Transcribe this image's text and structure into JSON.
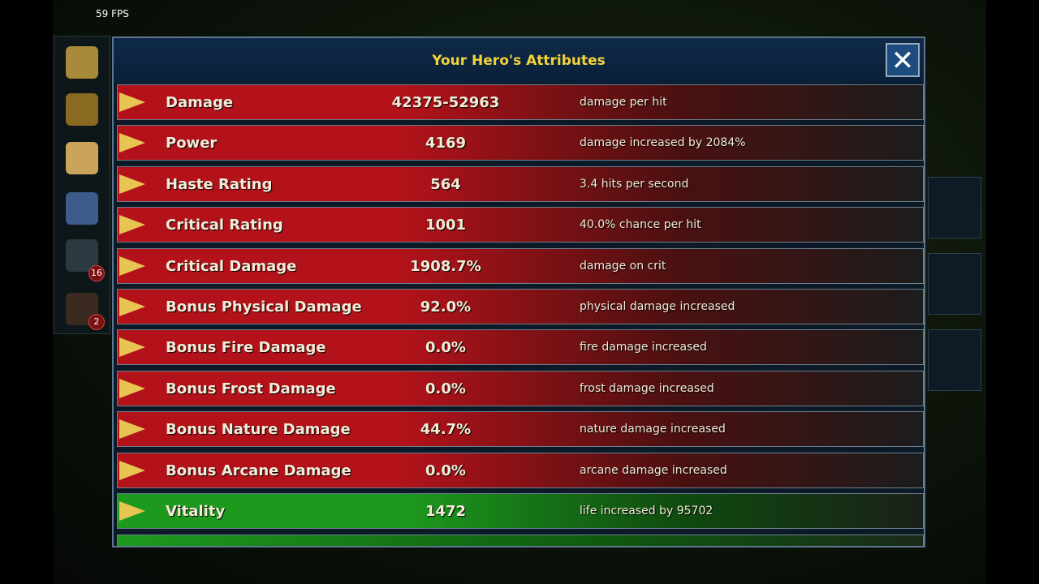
{
  "hud": {
    "fps": "59 FPS"
  },
  "sidebar": {
    "mail_badge": "16",
    "guild_badge": "2"
  },
  "panel": {
    "title": "Your Hero's Attributes",
    "rows": [
      {
        "name": "Damage",
        "value": "42375-52963",
        "description": "damage per hit",
        "color": "#b3121a"
      },
      {
        "name": "Power",
        "value": "4169",
        "description": "damage increased by 2084%",
        "color": "#b3121a"
      },
      {
        "name": "Haste Rating",
        "value": "564",
        "description": "3.4 hits per second",
        "color": "#b3121a"
      },
      {
        "name": "Critical Rating",
        "value": "1001",
        "description": "40.0% chance per hit",
        "color": "#b3121a"
      },
      {
        "name": "Critical Damage",
        "value": "1908.7%",
        "description": "damage on crit",
        "color": "#b3121a"
      },
      {
        "name": "Bonus Physical Damage",
        "value": "92.0%",
        "description": "physical damage increased",
        "color": "#b3121a"
      },
      {
        "name": "Bonus Fire Damage",
        "value": "0.0%",
        "description": "fire damage increased",
        "color": "#b3121a"
      },
      {
        "name": "Bonus Frost Damage",
        "value": "0.0%",
        "description": "frost damage increased",
        "color": "#b3121a"
      },
      {
        "name": "Bonus Nature Damage",
        "value": "44.7%",
        "description": "nature damage increased",
        "color": "#b3121a"
      },
      {
        "name": "Bonus Arcane Damage",
        "value": "0.0%",
        "description": "arcane damage increased",
        "color": "#b3121a"
      },
      {
        "name": "Vitality",
        "value": "1472",
        "description": "life increased by 95702",
        "color": "#1d9a1d"
      }
    ]
  }
}
